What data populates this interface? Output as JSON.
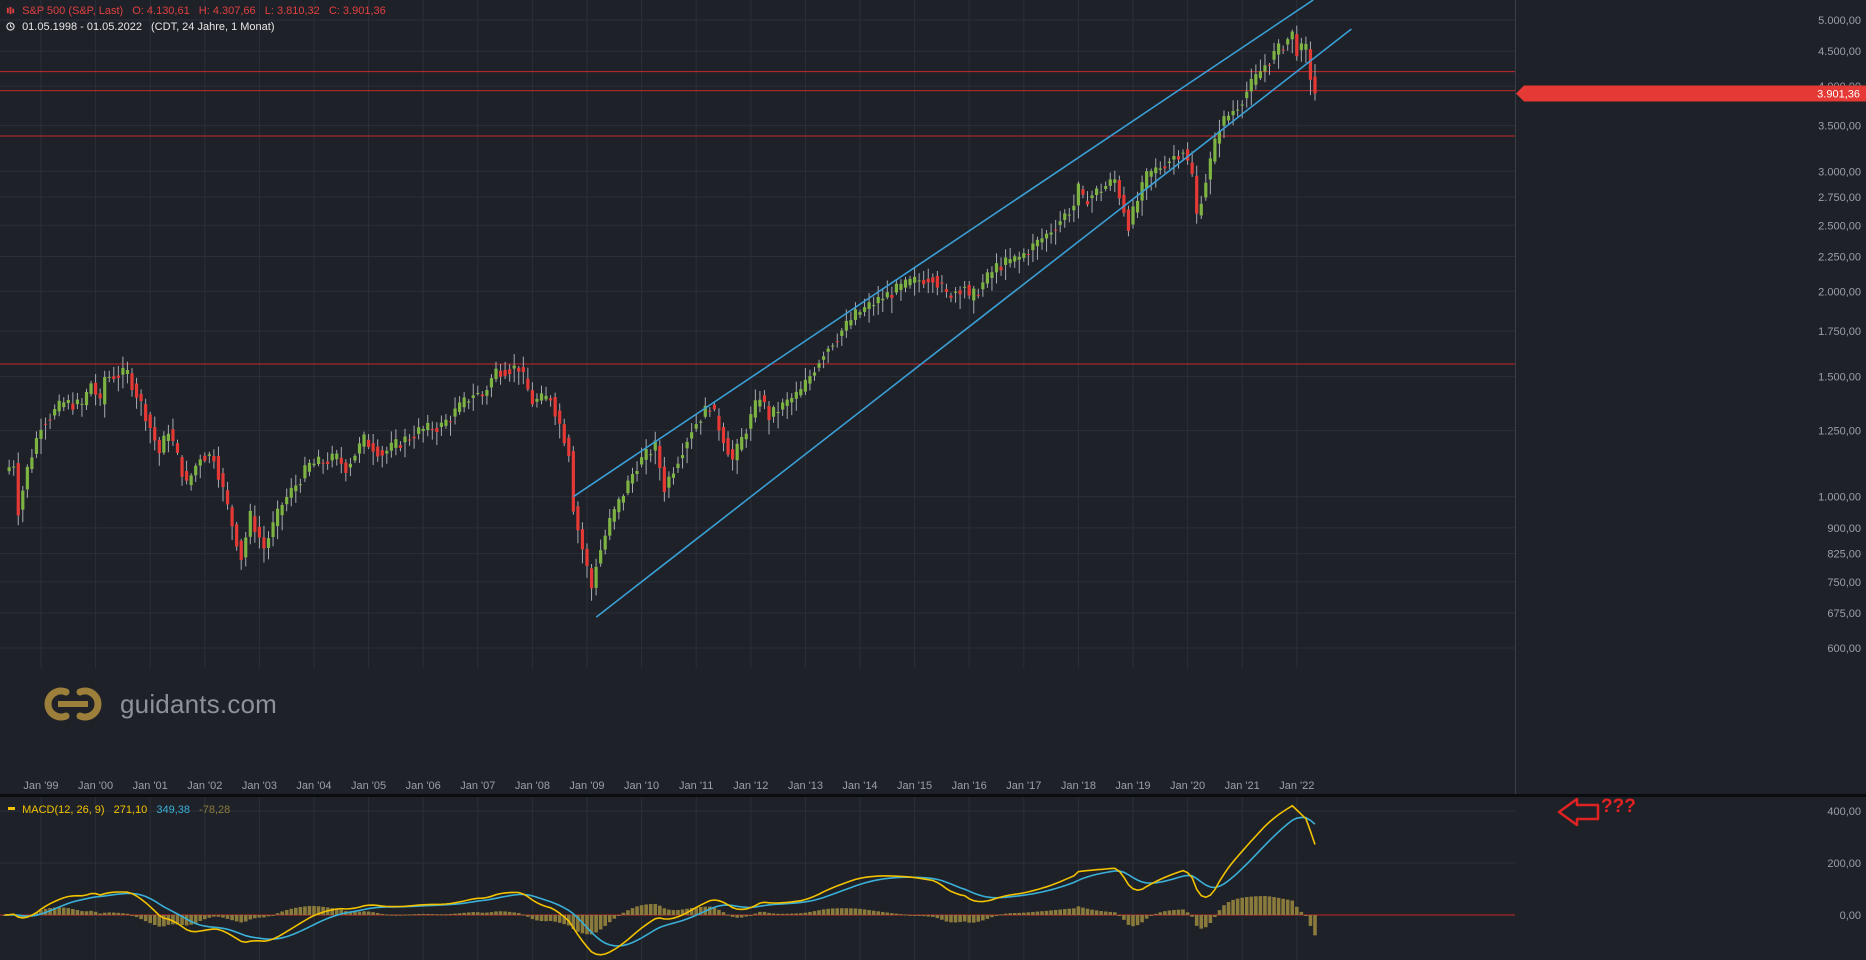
{
  "header": {
    "symbol": "S&P 500 (S&P, Last)",
    "open": "O: 4.130,61",
    "high": "H: 4.307,66",
    "low": "L: 3.810,32",
    "close": "C: 3.901,36",
    "range": "01.05.1998 - 01.05.2022",
    "info": "(CDT, 24 Jahre, 1 Monat)"
  },
  "watermark": "guidants.com",
  "last_price_label": "3.901,36",
  "macd_legend": {
    "name": "MACD(12, 26, 9)",
    "macd": "271,10",
    "signal": "349,38",
    "hist": "-78,28"
  },
  "annotation": "???",
  "colors": {
    "background": "#1e2128",
    "up_candle": "#7cb342",
    "down_candle": "#e53935",
    "channel": "#3a9fd6",
    "hline": "#c62828",
    "macd_line": "#f2c200",
    "signal_line": "#3ab0d8",
    "histogram": "#8a7a3c",
    "annotation": "#e02222"
  },
  "chart_data": {
    "type": "candlestick",
    "interval": "1 Monat",
    "scale": "log",
    "y_ticks": [
      "600,00",
      "675,00",
      "750,00",
      "825,00",
      "900,00",
      "1.000,00",
      "1.250,00",
      "1.500,00",
      "1.750,00",
      "2.000,00",
      "2.250,00",
      "2.500,00",
      "2.750,00",
      "3.000,00",
      "3.500,00",
      "4.000,00",
      "4.500,00",
      "5.000,00"
    ],
    "x_ticks": [
      "Jan '99",
      "Jan '00",
      "Jan '01",
      "Jan '02",
      "Jan '03",
      "Jan '04",
      "Jan '05",
      "Jan '06",
      "Jan '07",
      "Jan '08",
      "Jan '09",
      "Jan '10",
      "Jan '11",
      "Jan '12",
      "Jan '13",
      "Jan '14",
      "Jan '15",
      "Jan '16",
      "Jan '17",
      "Jan '18",
      "Jan '19",
      "Jan '20",
      "Jan '21",
      "Jan '22"
    ],
    "horizontal_lines": [
      4200,
      3940,
      3380,
      1565
    ],
    "channel_upper": [
      [
        2008.75,
        1000
      ],
      [
        2022.3,
        5350
      ]
    ],
    "channel_lower": [
      [
        2009.17,
        666
      ],
      [
        2023.0,
        4850
      ]
    ],
    "monthly_closes": [
      {
        "t": "1998-05",
        "c": 1090
      },
      {
        "t": "1998-07",
        "c": 1120
      },
      {
        "t": "1998-08",
        "c": 957
      },
      {
        "t": "1998-10",
        "c": 1098
      },
      {
        "t": "1999-01",
        "c": 1279
      },
      {
        "t": "1999-06",
        "c": 1372
      },
      {
        "t": "1999-10",
        "c": 1362
      },
      {
        "t": "1999-12",
        "c": 1469
      },
      {
        "t": "2000-02",
        "c": 1366
      },
      {
        "t": "2000-03",
        "c": 1498
      },
      {
        "t": "2000-08",
        "c": 1517
      },
      {
        "t": "2000-12",
        "c": 1320
      },
      {
        "t": "2001-03",
        "c": 1160
      },
      {
        "t": "2001-05",
        "c": 1256
      },
      {
        "t": "2001-09",
        "c": 1040
      },
      {
        "t": "2001-12",
        "c": 1148
      },
      {
        "t": "2002-03",
        "c": 1147
      },
      {
        "t": "2002-07",
        "c": 911
      },
      {
        "t": "2002-09",
        "c": 815
      },
      {
        "t": "2002-11",
        "c": 936
      },
      {
        "t": "2003-02",
        "c": 841
      },
      {
        "t": "2003-06",
        "c": 975
      },
      {
        "t": "2003-12",
        "c": 1112
      },
      {
        "t": "2004-06",
        "c": 1140
      },
      {
        "t": "2004-08",
        "c": 1104
      },
      {
        "t": "2004-12",
        "c": 1212
      },
      {
        "t": "2005-04",
        "c": 1157
      },
      {
        "t": "2005-12",
        "c": 1248
      },
      {
        "t": "2006-05",
        "c": 1270
      },
      {
        "t": "2006-12",
        "c": 1418
      },
      {
        "t": "2007-02",
        "c": 1406
      },
      {
        "t": "2007-05",
        "c": 1530
      },
      {
        "t": "2007-10",
        "c": 1549
      },
      {
        "t": "2008-01",
        "c": 1378
      },
      {
        "t": "2008-05",
        "c": 1400
      },
      {
        "t": "2008-09",
        "c": 1166
      },
      {
        "t": "2008-10",
        "c": 968
      },
      {
        "t": "2008-11",
        "c": 896
      },
      {
        "t": "2009-02",
        "c": 735
      },
      {
        "t": "2009-03",
        "c": 798
      },
      {
        "t": "2009-06",
        "c": 919
      },
      {
        "t": "2009-12",
        "c": 1115
      },
      {
        "t": "2010-04",
        "c": 1187
      },
      {
        "t": "2010-06",
        "c": 1031
      },
      {
        "t": "2010-12",
        "c": 1258
      },
      {
        "t": "2011-04",
        "c": 1364
      },
      {
        "t": "2011-09",
        "c": 1131
      },
      {
        "t": "2011-12",
        "c": 1258
      },
      {
        "t": "2012-03",
        "c": 1408
      },
      {
        "t": "2012-05",
        "c": 1310
      },
      {
        "t": "2012-12",
        "c": 1426
      },
      {
        "t": "2013-05",
        "c": 1631
      },
      {
        "t": "2013-12",
        "c": 1848
      },
      {
        "t": "2014-06",
        "c": 1960
      },
      {
        "t": "2014-12",
        "c": 2059
      },
      {
        "t": "2015-05",
        "c": 2107
      },
      {
        "t": "2015-08",
        "c": 1972
      },
      {
        "t": "2015-12",
        "c": 2044
      },
      {
        "t": "2016-01",
        "c": 1940
      },
      {
        "t": "2016-07",
        "c": 2174
      },
      {
        "t": "2016-12",
        "c": 2239
      },
      {
        "t": "2017-06",
        "c": 2423
      },
      {
        "t": "2017-12",
        "c": 2674
      },
      {
        "t": "2018-01",
        "c": 2824
      },
      {
        "t": "2018-02",
        "c": 2714
      },
      {
        "t": "2018-09",
        "c": 2914
      },
      {
        "t": "2018-12",
        "c": 2507
      },
      {
        "t": "2019-04",
        "c": 2946
      },
      {
        "t": "2019-12",
        "c": 3231
      },
      {
        "t": "2020-02",
        "c": 2954
      },
      {
        "t": "2020-03",
        "c": 2585
      },
      {
        "t": "2020-08",
        "c": 3500
      },
      {
        "t": "2020-12",
        "c": 3756
      },
      {
        "t": "2021-06",
        "c": 4298
      },
      {
        "t": "2021-12",
        "c": 4766
      },
      {
        "t": "2022-01",
        "c": 4516
      },
      {
        "t": "2022-03",
        "c": 4530
      },
      {
        "t": "2022-04",
        "c": 4132
      },
      {
        "t": "2022-05",
        "c": 3901
      }
    ],
    "last_candle": {
      "t": "2022-05",
      "o": 4130.61,
      "h": 4307.66,
      "l": 3810.32,
      "c": 3901.36
    },
    "macd": {
      "params": "12, 26, 9",
      "y_ticks": [
        "0,00",
        "200,00",
        "400,00"
      ],
      "last": {
        "macd": 271.1,
        "signal": 349.38,
        "hist": -78.28
      }
    }
  }
}
